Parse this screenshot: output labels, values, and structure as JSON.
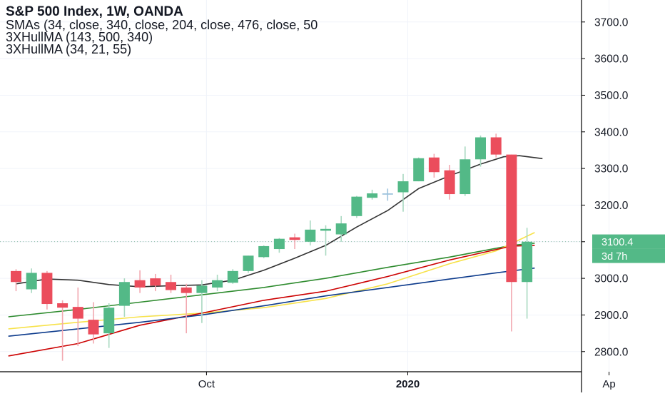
{
  "header": {
    "title": "S&P 500 Index, 1W, OANDA",
    "lines": [
      "SMAs (34, close, 340, close, 204, close, 476, close, 50",
      "3XHullMA (143, 500, 340)",
      "3XHullMA (34, 21, 55)"
    ]
  },
  "colors": {
    "up": "#53b987",
    "down": "#eb4d5c",
    "doji": "#9ec3dd",
    "doji_down": "#f0a0ab",
    "black_ma": "#333333",
    "green_ma": "#2e8b2e",
    "yellow_ma": "#f7e24a",
    "red_ma": "#cc0000",
    "blue_ma": "#0d3b8c",
    "price_tag": "#53b987",
    "grid": "#f0f3fa",
    "axis": "#000000"
  },
  "chart_data": {
    "type": "candlestick",
    "title": "S&P 500 Index, 1W, OANDA",
    "ylim": [
      2745,
      3760
    ],
    "y_ticks": [
      2800.0,
      2900.0,
      3000.0,
      3100.0,
      3200.0,
      3300.0,
      3400.0,
      3500.0,
      3600.0,
      3700.0
    ],
    "y_tick_labels": [
      "2800.0",
      "2900.0",
      "3000.0",
      "3100.0",
      "3200.0",
      "3300.0",
      "3400.0",
      "3500.0",
      "3600.0",
      "3700.0"
    ],
    "x_tick_labels": [
      {
        "label": "Oct",
        "at_week": 12.3,
        "bold": false
      },
      {
        "label": "2020",
        "at_week": 25.3,
        "bold": true
      },
      {
        "label": "Ap",
        "at_week": 38.3,
        "bold": false
      }
    ],
    "candles": [
      {
        "o": 3020,
        "h": 3025,
        "l": 2965,
        "c": 2990
      },
      {
        "o": 2970,
        "h": 3027,
        "l": 2960,
        "c": 3015
      },
      {
        "o": 3015,
        "h": 3020,
        "l": 2915,
        "c": 2930
      },
      {
        "o": 2932,
        "h": 2940,
        "l": 2775,
        "c": 2920
      },
      {
        "o": 2922,
        "h": 2975,
        "l": 2815,
        "c": 2890
      },
      {
        "o": 2887,
        "h": 2935,
        "l": 2822,
        "c": 2847
      },
      {
        "o": 2850,
        "h": 2932,
        "l": 2810,
        "c": 2920
      },
      {
        "o": 2925,
        "h": 3000,
        "l": 2895,
        "c": 2990
      },
      {
        "o": 2995,
        "h": 3022,
        "l": 2960,
        "c": 2975
      },
      {
        "o": 3000,
        "h": 3012,
        "l": 2965,
        "c": 2980
      },
      {
        "o": 2990,
        "h": 3010,
        "l": 2960,
        "c": 2968
      },
      {
        "o": 2975,
        "h": 2985,
        "l": 2850,
        "c": 2960
      },
      {
        "o": 2960,
        "h": 2995,
        "l": 2878,
        "c": 2980
      },
      {
        "o": 2975,
        "h": 3010,
        "l": 2965,
        "c": 2995
      },
      {
        "o": 2988,
        "h": 3025,
        "l": 2985,
        "c": 3020
      },
      {
        "o": 3020,
        "h": 3062,
        "l": 3015,
        "c": 3062
      },
      {
        "o": 3058,
        "h": 3090,
        "l": 3055,
        "c": 3088
      },
      {
        "o": 3080,
        "h": 3110,
        "l": 3070,
        "c": 3108
      },
      {
        "o": 3112,
        "h": 3122,
        "l": 3080,
        "c": 3105
      },
      {
        "o": 3100,
        "h": 3158,
        "l": 3090,
        "c": 3133
      },
      {
        "o": 3130,
        "h": 3145,
        "l": 3062,
        "c": 3135
      },
      {
        "o": 3120,
        "h": 3170,
        "l": 3100,
        "c": 3150
      },
      {
        "o": 3170,
        "h": 3225,
        "l": 3165,
        "c": 3223
      },
      {
        "o": 3220,
        "h": 3242,
        "l": 3215,
        "c": 3232
      },
      {
        "o": 3232,
        "h": 3245,
        "l": 3212,
        "c": 3232
      },
      {
        "o": 3235,
        "h": 3285,
        "l": 3182,
        "c": 3265
      },
      {
        "o": 3265,
        "h": 3330,
        "l": 3265,
        "c": 3328
      },
      {
        "o": 3330,
        "h": 3340,
        "l": 3275,
        "c": 3290
      },
      {
        "o": 3295,
        "h": 3310,
        "l": 3215,
        "c": 3230
      },
      {
        "o": 3230,
        "h": 3360,
        "l": 3225,
        "c": 3325
      },
      {
        "o": 3325,
        "h": 3390,
        "l": 3305,
        "c": 3385
      },
      {
        "o": 3385,
        "h": 3395,
        "l": 3330,
        "c": 3338
      },
      {
        "o": 3338,
        "h": 3338,
        "l": 2855,
        "c": 2990
      },
      {
        "o": 2990,
        "h": 3138,
        "l": 2890,
        "c": 3100
      }
    ],
    "series": [
      {
        "color": "#333333",
        "points": [
          [
            0,
            2985
          ],
          [
            2,
            2998
          ],
          [
            4,
            2995
          ],
          [
            6,
            2983
          ],
          [
            8,
            2977
          ],
          [
            10,
            2980
          ],
          [
            12,
            2982
          ],
          [
            14,
            2995
          ],
          [
            16,
            3022
          ],
          [
            18,
            3055
          ],
          [
            20,
            3090
          ],
          [
            22,
            3140
          ],
          [
            24,
            3185
          ],
          [
            26,
            3245
          ],
          [
            28,
            3280
          ],
          [
            30,
            3312
          ],
          [
            31.5,
            3332
          ],
          [
            32.5,
            3335
          ],
          [
            34,
            3327
          ]
        ]
      },
      {
        "color": "#2e8b2e",
        "points": [
          [
            -0.5,
            2895
          ],
          [
            4,
            2915
          ],
          [
            8,
            2935
          ],
          [
            12,
            2955
          ],
          [
            16,
            2975
          ],
          [
            20,
            3000
          ],
          [
            24,
            3030
          ],
          [
            28,
            3058
          ],
          [
            32,
            3090
          ],
          [
            33.5,
            3096
          ]
        ]
      },
      {
        "color": "#f7e24a",
        "points": [
          [
            -0.5,
            2862
          ],
          [
            4,
            2880
          ],
          [
            8,
            2895
          ],
          [
            12,
            2905
          ],
          [
            16,
            2920
          ],
          [
            20,
            2945
          ],
          [
            24,
            2985
          ],
          [
            28,
            3040
          ],
          [
            31,
            3075
          ],
          [
            33.5,
            3125
          ]
        ]
      },
      {
        "color": "#cc0000",
        "points": [
          [
            -0.5,
            2788
          ],
          [
            4,
            2822
          ],
          [
            8,
            2872
          ],
          [
            12,
            2905
          ],
          [
            16,
            2940
          ],
          [
            20,
            2965
          ],
          [
            24,
            3005
          ],
          [
            28,
            3050
          ],
          [
            32,
            3088
          ],
          [
            33.5,
            3090
          ]
        ]
      },
      {
        "color": "#0d3b8c",
        "points": [
          [
            -0.5,
            2842
          ],
          [
            4,
            2862
          ],
          [
            8,
            2880
          ],
          [
            12,
            2900
          ],
          [
            16,
            2925
          ],
          [
            20,
            2952
          ],
          [
            24,
            2975
          ],
          [
            28,
            2998
          ],
          [
            31,
            3015
          ],
          [
            33.5,
            3028
          ]
        ]
      }
    ],
    "last_price": {
      "value": 3100.4,
      "label": "3100.4",
      "countdown": "3d 7h"
    }
  }
}
